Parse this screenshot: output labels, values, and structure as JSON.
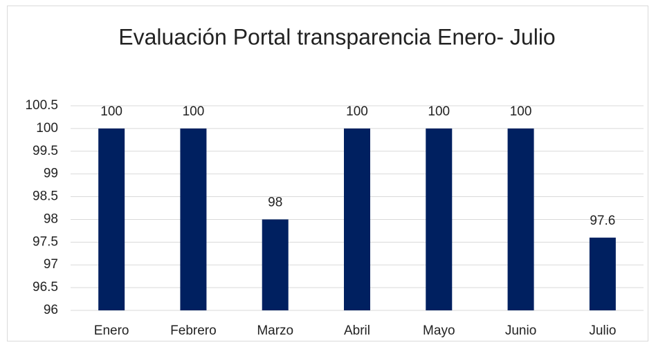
{
  "chart_data": {
    "type": "bar",
    "title": "Evaluación Portal transparencia Enero- Julio",
    "categories": [
      "Enero",
      "Febrero",
      "Marzo",
      "Abril",
      "Mayo",
      "Junio",
      "Julio"
    ],
    "values": [
      100,
      100,
      98,
      100,
      100,
      100,
      97.6
    ],
    "color": "#002060",
    "ylim": [
      96,
      100.5
    ],
    "yticks": [
      96,
      96.5,
      97,
      97.5,
      98,
      98.5,
      99,
      99.5,
      100,
      100.5
    ],
    "grid": true
  }
}
